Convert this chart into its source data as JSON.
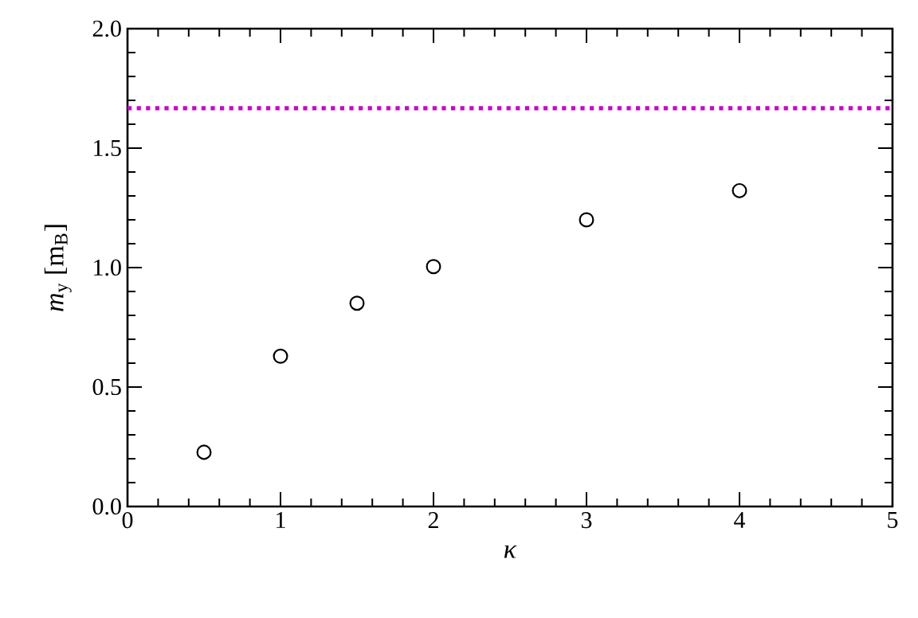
{
  "chart_data": {
    "type": "scatter",
    "x": [
      0.5,
      1,
      1.5,
      2,
      3,
      4
    ],
    "series": [
      {
        "color": "#000000",
        "values": [
          0.227,
          0.629,
          0.851,
          1.004,
          1.2,
          1.322
        ]
      }
    ],
    "marker": "circle",
    "xlabel": "*κ*",
    "ylabel": "*m*$_{y}$ [m$_{B}$]",
    "xlim": [
      0,
      5
    ],
    "ylim": [
      0,
      2.0
    ],
    "xticks": [
      0,
      1,
      2,
      3,
      4,
      5
    ],
    "yticks": [
      {
        "value": 0,
        "label": "0.0"
      },
      0.5,
      {
        "value": 1,
        "label": "1.0"
      },
      1.5,
      {
        "value": 2,
        "label": "2.0"
      }
    ],
    "ref_lines": [
      {
        "axis": "y",
        "value": 1.667,
        "color": "#cc00cc",
        "line_style": "dotted"
      }
    ]
  }
}
